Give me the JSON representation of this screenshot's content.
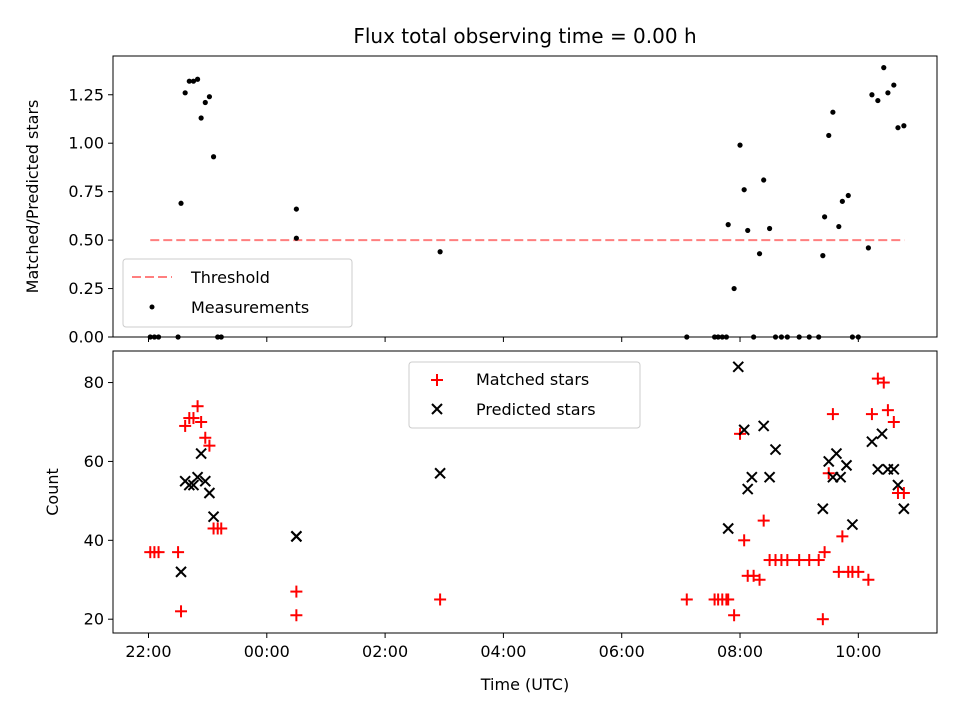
{
  "chart_data": [
    {
      "type": "scatter",
      "title": "Flux total observing time = 0.00 h",
      "xlabel": "",
      "ylabel": "Matched/Predicted stars",
      "xlim": [
        -2.6,
        11.33
      ],
      "ylim": [
        0.0,
        1.45
      ],
      "yticks": [
        0.0,
        0.25,
        0.5,
        0.75,
        1.0,
        1.25
      ],
      "ytick_labels": [
        "0.00",
        "0.25",
        "0.50",
        "0.75",
        "1.00",
        "1.25"
      ],
      "legend_position": "lower-left",
      "threshold": {
        "name": "Threshold",
        "value": 0.5,
        "x_range": [
          -1.97,
          10.78
        ],
        "color": "#ff7f7f"
      },
      "series": [
        {
          "name": "Measurements",
          "color": "#000000",
          "x": [
            -1.97,
            -1.9,
            -1.83,
            -1.5,
            -1.45,
            -1.38,
            -1.31,
            -1.24,
            -1.17,
            -1.11,
            -1.04,
            -0.97,
            -0.9,
            -0.83,
            -0.77,
            0.5,
            0.5,
            2.93,
            7.1,
            7.57,
            7.63,
            7.7,
            7.77,
            7.8,
            7.9,
            8.0,
            8.07,
            8.13,
            8.23,
            8.33,
            8.4,
            8.5,
            8.6,
            8.7,
            8.8,
            9.0,
            9.17,
            9.33,
            9.4,
            9.43,
            9.5,
            9.57,
            9.67,
            9.73,
            9.83,
            9.9,
            10.0,
            10.17,
            10.23,
            10.33,
            10.43,
            10.5,
            10.6,
            10.67,
            10.77
          ],
          "y": [
            0.0,
            0.0,
            0.0,
            0.0,
            0.69,
            1.26,
            1.32,
            1.32,
            1.33,
            1.13,
            1.21,
            1.24,
            0.93,
            0.0,
            0.0,
            0.51,
            0.66,
            0.44,
            0.0,
            0.0,
            0.0,
            0.0,
            0.0,
            0.58,
            0.25,
            0.99,
            0.76,
            0.55,
            0.0,
            0.43,
            0.81,
            0.56,
            0.0,
            0.0,
            0.0,
            0.0,
            0.0,
            0.0,
            0.42,
            0.62,
            1.04,
            1.16,
            0.57,
            0.7,
            0.73,
            0.0,
            0.0,
            0.46,
            1.25,
            1.22,
            1.39,
            1.26,
            1.3,
            1.08,
            1.09
          ]
        }
      ]
    },
    {
      "type": "scatter",
      "title": "",
      "xlabel": "Time (UTC)",
      "ylabel": "Count",
      "xlim": [
        -2.6,
        11.33
      ],
      "ylim": [
        16.5,
        88.0
      ],
      "xticks": [
        -2,
        0,
        2,
        4,
        6,
        8,
        10
      ],
      "xtick_labels": [
        "22:00",
        "00:00",
        "02:00",
        "04:00",
        "06:00",
        "08:00",
        "10:00"
      ],
      "yticks": [
        20,
        40,
        60,
        80
      ],
      "ytick_labels": [
        "20",
        "40",
        "60",
        "80"
      ],
      "legend_position": "upper-center",
      "series": [
        {
          "name": "Matched stars",
          "marker": "plus",
          "color": "#ff0000",
          "x": [
            -1.97,
            -1.9,
            -1.83,
            -1.5,
            -1.45,
            -1.38,
            -1.31,
            -1.24,
            -1.17,
            -1.11,
            -1.04,
            -0.97,
            -0.9,
            -0.83,
            -0.77,
            0.5,
            0.5,
            2.93,
            7.1,
            7.57,
            7.63,
            7.7,
            7.77,
            7.8,
            7.9,
            8.0,
            8.07,
            8.13,
            8.23,
            8.33,
            8.4,
            8.5,
            8.6,
            8.7,
            8.8,
            9.0,
            9.17,
            9.33,
            9.4,
            9.43,
            9.5,
            9.57,
            9.67,
            9.73,
            9.83,
            9.9,
            10.0,
            10.17,
            10.23,
            10.33,
            10.43,
            10.5,
            10.6,
            10.67,
            10.77
          ],
          "y": [
            37,
            37,
            37,
            37,
            22,
            69,
            71,
            71,
            74,
            70,
            66,
            64,
            43,
            43,
            43,
            21,
            27,
            25,
            25,
            25,
            25,
            25,
            25,
            25,
            21,
            67,
            40,
            31,
            31,
            30,
            45,
            35,
            35,
            35,
            35,
            35,
            35,
            35,
            20,
            37,
            57,
            72,
            32,
            41,
            32,
            32,
            32,
            30,
            72,
            81,
            80,
            73,
            70,
            52,
            52
          ]
        },
        {
          "name": "Predicted stars",
          "marker": "x",
          "color": "#000000",
          "x": [
            -1.45,
            -1.38,
            -1.31,
            -1.24,
            -1.17,
            -1.11,
            -1.04,
            -0.97,
            -0.9,
            0.5,
            0.5,
            2.93,
            7.8,
            7.97,
            8.07,
            8.13,
            8.2,
            8.4,
            8.5,
            8.6,
            9.4,
            9.5,
            9.57,
            9.63,
            9.7,
            9.8,
            9.9,
            10.23,
            10.33,
            10.4,
            10.5,
            10.6,
            10.67,
            10.77
          ],
          "y": [
            32,
            55,
            54,
            54,
            56,
            62,
            55,
            52,
            46,
            41,
            41,
            57,
            43,
            84,
            68,
            53,
            56,
            69,
            56,
            63,
            48,
            60,
            56,
            62,
            56,
            59,
            44,
            65,
            58,
            67,
            58,
            58,
            54,
            48
          ]
        }
      ]
    }
  ]
}
